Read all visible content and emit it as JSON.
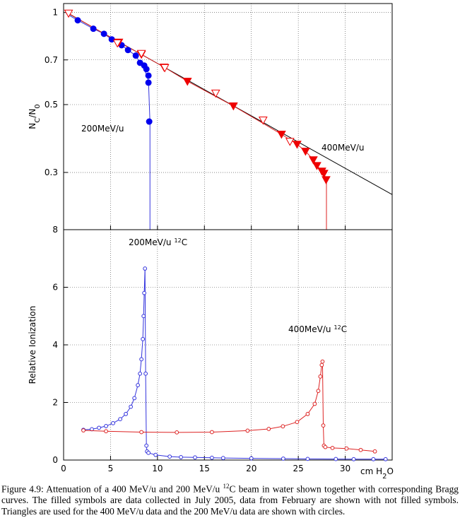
{
  "chart_data": [
    {
      "type": "scatter",
      "log_y": true,
      "grid": true,
      "ylabel": [
        {
          "text": "N"
        },
        {
          "text": "C",
          "sub": true
        },
        {
          "text": "/N"
        },
        {
          "text": "0",
          "sub": true
        }
      ],
      "xlim": [
        0,
        35
      ],
      "xticks": [
        0,
        5,
        10,
        15,
        20,
        25,
        30
      ],
      "ylim": [
        0.195,
        1.07
      ],
      "yticks": [
        0.3,
        0.5,
        0.7,
        1
      ],
      "annotations": [
        {
          "text": "200MeV/u"
        },
        {
          "text": "400MeV/u"
        }
      ],
      "series": [
        {
          "marker": "none",
          "line": true,
          "color": "#000000",
          "x": [
            0.3,
            35
          ],
          "values": [
            1.0,
            0.254
          ]
        },
        {
          "marker": "none",
          "line": true,
          "drop": true,
          "color": "#3333dd",
          "x": [
            0.3,
            1.51,
            3.17,
            4.3,
            5.13,
            6.18,
            6.86,
            7.69,
            8.14,
            8.59,
            9.04,
            9.2
          ],
          "values": [
            0.99,
            0.943,
            0.885,
            0.852,
            0.817,
            0.782,
            0.754,
            0.723,
            0.685,
            0.653,
            0.6,
            0.44
          ]
        },
        {
          "marker": "none",
          "line": true,
          "drop": true,
          "color": "#dd2222",
          "x": [
            0.5,
            5.88,
            8.29,
            10.7,
            13.19,
            18.09,
            23.21,
            24.87,
            25.77,
            26.6,
            26.98,
            27.51,
            27.73,
            27.96,
            28.0
          ],
          "values": [
            0.995,
            0.8,
            0.73,
            0.663,
            0.596,
            0.495,
            0.4,
            0.371,
            0.352,
            0.33,
            0.316,
            0.303,
            0.298,
            0.284,
            0.28
          ]
        },
        {
          "marker": "circle",
          "filled": true,
          "color": "#0000ee",
          "x": [
            1.51,
            3.17,
            4.3,
            5.13,
            6.18,
            6.86,
            7.69,
            8.14,
            8.59,
            8.82,
            9.04,
            9.04,
            9.12
          ],
          "values": [
            0.943,
            0.885,
            0.852,
            0.817,
            0.782,
            0.754,
            0.723,
            0.685,
            0.671,
            0.653,
            0.622,
            0.59,
            0.44
          ]
        },
        {
          "marker": "triangle",
          "filled": true,
          "color": "#ee0000",
          "x": [
            5.88,
            8.29,
            10.7,
            13.19,
            18.09,
            23.21,
            24.87,
            25.77,
            26.6,
            26.98,
            27.51,
            27.73,
            27.96
          ],
          "values": [
            0.8,
            0.73,
            0.663,
            0.596,
            0.495,
            0.4,
            0.371,
            0.352,
            0.33,
            0.316,
            0.303,
            0.298,
            0.284
          ]
        },
        {
          "marker": "triangle",
          "filled": false,
          "color": "#ee0000",
          "x": [
            0.53,
            5.73,
            8.29,
            10.78,
            16.2,
            21.25,
            24.11
          ],
          "values": [
            0.995,
            0.795,
            0.735,
            0.66,
            0.545,
            0.445,
            0.379
          ]
        }
      ]
    },
    {
      "type": "line",
      "grid": true,
      "ylabel": [
        {
          "text": "Relative Ionization"
        }
      ],
      "xlabel": [
        {
          "text": "cm H"
        },
        {
          "text": "2",
          "sub": true
        },
        {
          "text": "O"
        }
      ],
      "xlim": [
        0,
        35
      ],
      "xticks": [
        0,
        5,
        10,
        15,
        20,
        25,
        30
      ],
      "ylim": [
        0,
        8
      ],
      "yticks": [
        0,
        2,
        4,
        6,
        8
      ],
      "annotations": [
        {
          "text": "200MeV/u",
          "sup": "12",
          "after": "C"
        },
        {
          "text": "400MeV/u",
          "sup": "12",
          "after": "C"
        }
      ],
      "series": [
        {
          "marker": "circle",
          "filled": false,
          "line": true,
          "color": "#3333dd",
          "x": [
            2.11,
            3.01,
            3.77,
            4.52,
            5.27,
            6.03,
            6.63,
            7.16,
            7.54,
            7.91,
            8.14,
            8.29,
            8.44,
            8.52,
            8.59,
            8.67,
            8.74,
            8.82,
            8.89,
            9.04,
            9.8,
            11.3,
            12.5,
            14.0,
            15.8,
            17.0,
            20.0,
            23.4,
            26.0,
            29.0,
            30.9,
            33.0,
            34.3
          ],
          "values": [
            1.05,
            1.07,
            1.12,
            1.18,
            1.28,
            1.42,
            1.6,
            1.85,
            2.15,
            2.6,
            3.0,
            3.5,
            4.2,
            5.0,
            5.8,
            6.65,
            3.0,
            0.5,
            0.3,
            0.25,
            0.18,
            0.12,
            0.1,
            0.09,
            0.08,
            0.07,
            0.06,
            0.05,
            0.04,
            0.035,
            0.03,
            0.03,
            0.03
          ]
        },
        {
          "marker": "circle",
          "filled": false,
          "line": true,
          "color": "#dd2222",
          "x": [
            2.11,
            4.52,
            8.29,
            12.06,
            15.8,
            19.6,
            21.85,
            23.36,
            24.87,
            26.0,
            26.75,
            27.13,
            27.35,
            27.5,
            27.58,
            27.66,
            27.73,
            27.88,
            28.64,
            30.14,
            31.65,
            33.16
          ],
          "values": [
            1.03,
            1.0,
            0.97,
            0.96,
            0.97,
            1.02,
            1.08,
            1.17,
            1.32,
            1.6,
            1.95,
            2.4,
            2.9,
            3.3,
            3.42,
            1.2,
            0.5,
            0.45,
            0.42,
            0.4,
            0.35,
            0.3
          ]
        }
      ]
    }
  ],
  "caption": {
    "before": "Figure 4.9: Attenuation of a 400 MeV/u and 200 MeV/u ",
    "sup": "12",
    "after": "C beam in water shown together with corresponding Bragg curves. The filled symbols are data collected in July 2005, data from February are shown with not filled symbols. Triangles are used for the 400 MeV/u data and the 200 MeV/u data are shown with circles."
  }
}
